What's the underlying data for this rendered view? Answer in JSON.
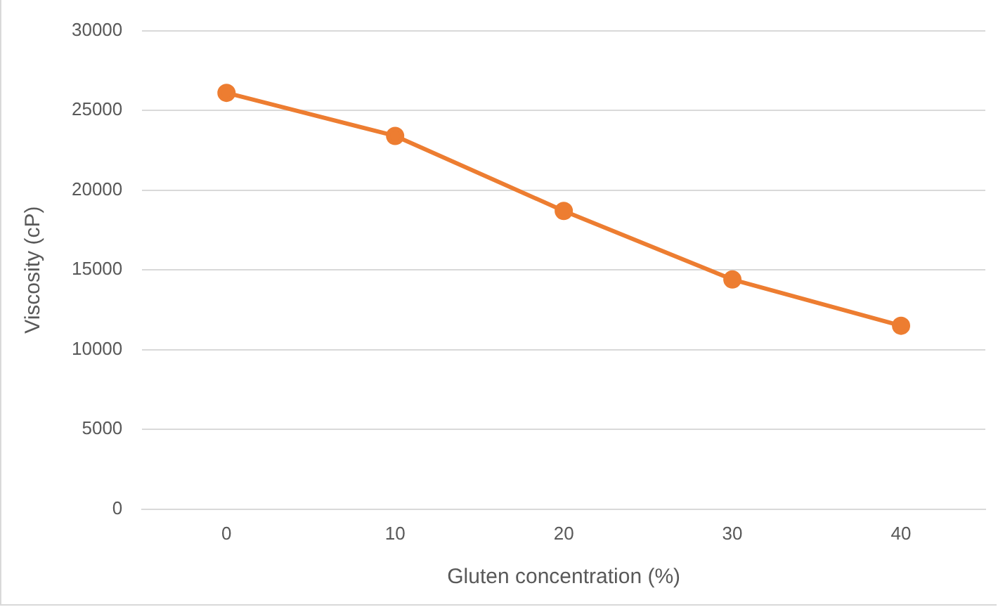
{
  "chart_data": {
    "type": "line",
    "xlabel": "Gluten concentration (%)",
    "ylabel": "Viscosity (cP)",
    "categories": [
      "0",
      "10",
      "20",
      "30",
      "40"
    ],
    "series": [
      {
        "color": "#ed7d31",
        "values": [
          26100,
          23400,
          18700,
          14400,
          11500
        ]
      }
    ],
    "ylim": [
      0,
      30000
    ],
    "yticks": [
      0,
      5000,
      10000,
      15000,
      20000,
      25000,
      30000
    ],
    "grid": "y",
    "marker": "circle",
    "line_style": "solid",
    "legend": false
  }
}
